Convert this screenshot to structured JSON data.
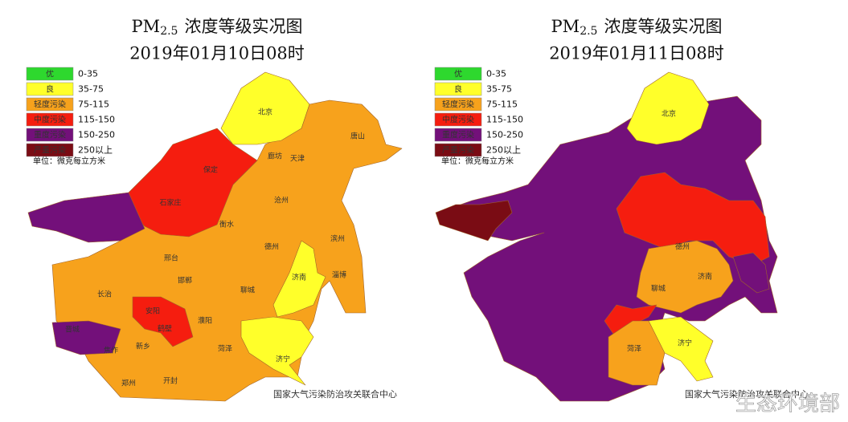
{
  "panels": [
    {
      "title": {
        "main": "PM",
        "sub": "2.5",
        "rest": "浓度等级实况图"
      },
      "date": "2019年01月10日08时",
      "cities": [
        "北京",
        "唐山",
        "廊坊",
        "天津",
        "保定",
        "石家庄",
        "沧州",
        "衡水",
        "滨州",
        "德州",
        "邢台",
        "济南",
        "淄博",
        "邯郸",
        "聊城",
        "长治",
        "晋城",
        "安阳",
        "鹤壁",
        "濮阳",
        "焦作",
        "新乡",
        "菏泽",
        "济宁",
        "郑州",
        "开封"
      ],
      "credit": "国家大气污染防治攻关联合中心"
    },
    {
      "title": {
        "main": "PM",
        "sub": "2.5",
        "rest": "浓度等级实况图"
      },
      "date": "2019年01月11日08时",
      "cities": [
        "北京",
        "德州",
        "济南",
        "聊城",
        "菏泽",
        "济宁"
      ],
      "credit": "国家大气污染防治攻关联合中心"
    }
  ],
  "legend": [
    {
      "label": "优",
      "range": "0-35",
      "color": "#2ed82e"
    },
    {
      "label": "良",
      "range": "35-75",
      "color": "#ffff2a"
    },
    {
      "label": "轻度污染",
      "range": "75-115",
      "color": "#f7a21c"
    },
    {
      "label": "中度污染",
      "range": "115-150",
      "color": "#f51d0f"
    },
    {
      "label": "重度污染",
      "range": "150-250",
      "color": "#73107a"
    },
    {
      "label": "严重污染",
      "range": "250以上",
      "color": "#7a0c14"
    }
  ],
  "unit": "单位：微克每立方米",
  "watermark": "生态环境部"
}
